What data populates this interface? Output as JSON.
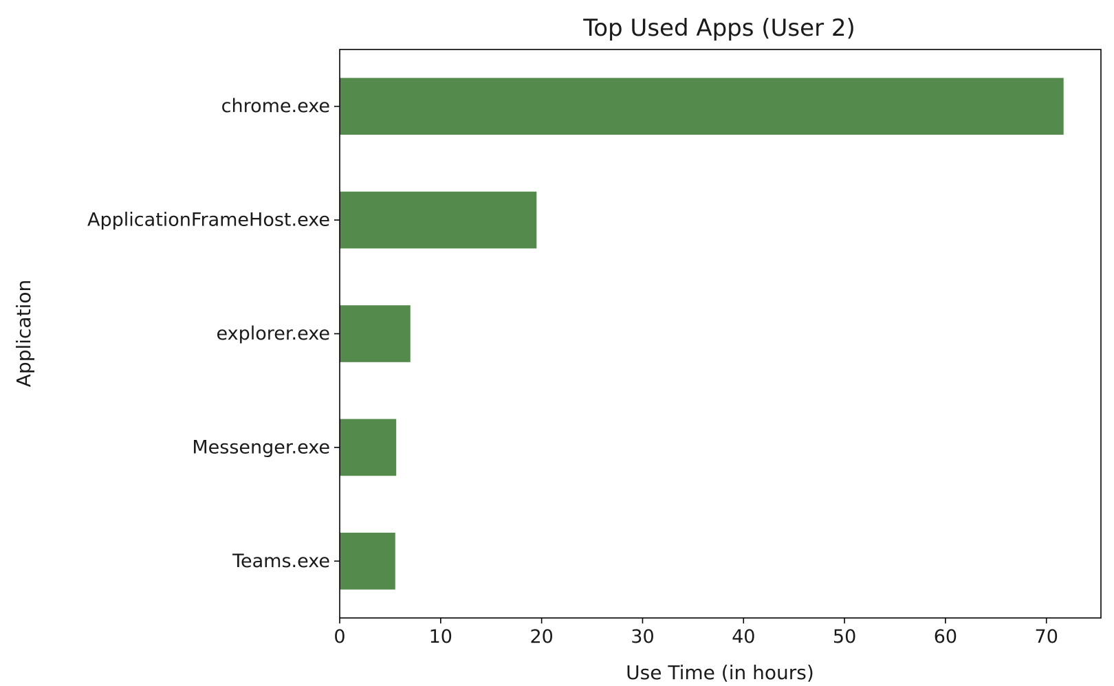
{
  "chart_data": {
    "type": "bar",
    "orientation": "horizontal",
    "title": "Top Used Apps (User 2)",
    "xlabel": "Use Time (in hours)",
    "ylabel": "Application",
    "categories": [
      "chrome.exe",
      "ApplicationFrameHost.exe",
      "explorer.exe",
      "Messenger.exe",
      "Teams.exe"
    ],
    "values": [
      71.7,
      19.5,
      7.0,
      5.6,
      5.5
    ],
    "xlim": [
      0,
      75.4
    ],
    "xticks": [
      0,
      10,
      20,
      30,
      40,
      50,
      60,
      70
    ],
    "bar_color": "#548a4b",
    "grid": false,
    "legend": "none"
  }
}
